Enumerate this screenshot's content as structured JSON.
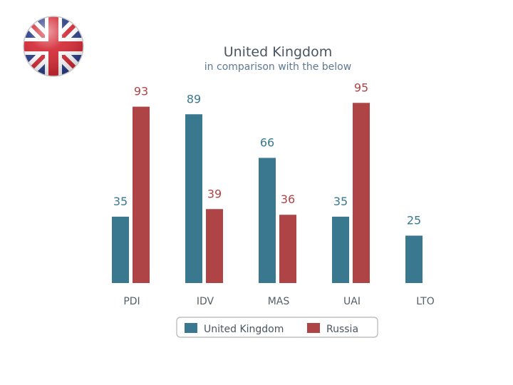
{
  "chart_data": {
    "type": "bar",
    "title": "United Kingdom",
    "subtitle": "in comparison with the below",
    "categories": [
      "PDI",
      "IDV",
      "MAS",
      "UAI",
      "LTO"
    ],
    "series": [
      {
        "name": "United Kingdom",
        "color": "#3a7890",
        "values": [
          35,
          89,
          66,
          35,
          25
        ]
      },
      {
        "name": "Russia",
        "color": "#ae4446",
        "values": [
          93,
          39,
          36,
          95,
          null
        ]
      }
    ],
    "ylim": [
      0,
      100
    ],
    "grid": false,
    "legend_position": "bottom"
  },
  "flag": {
    "name": "uk-flag-icon"
  }
}
